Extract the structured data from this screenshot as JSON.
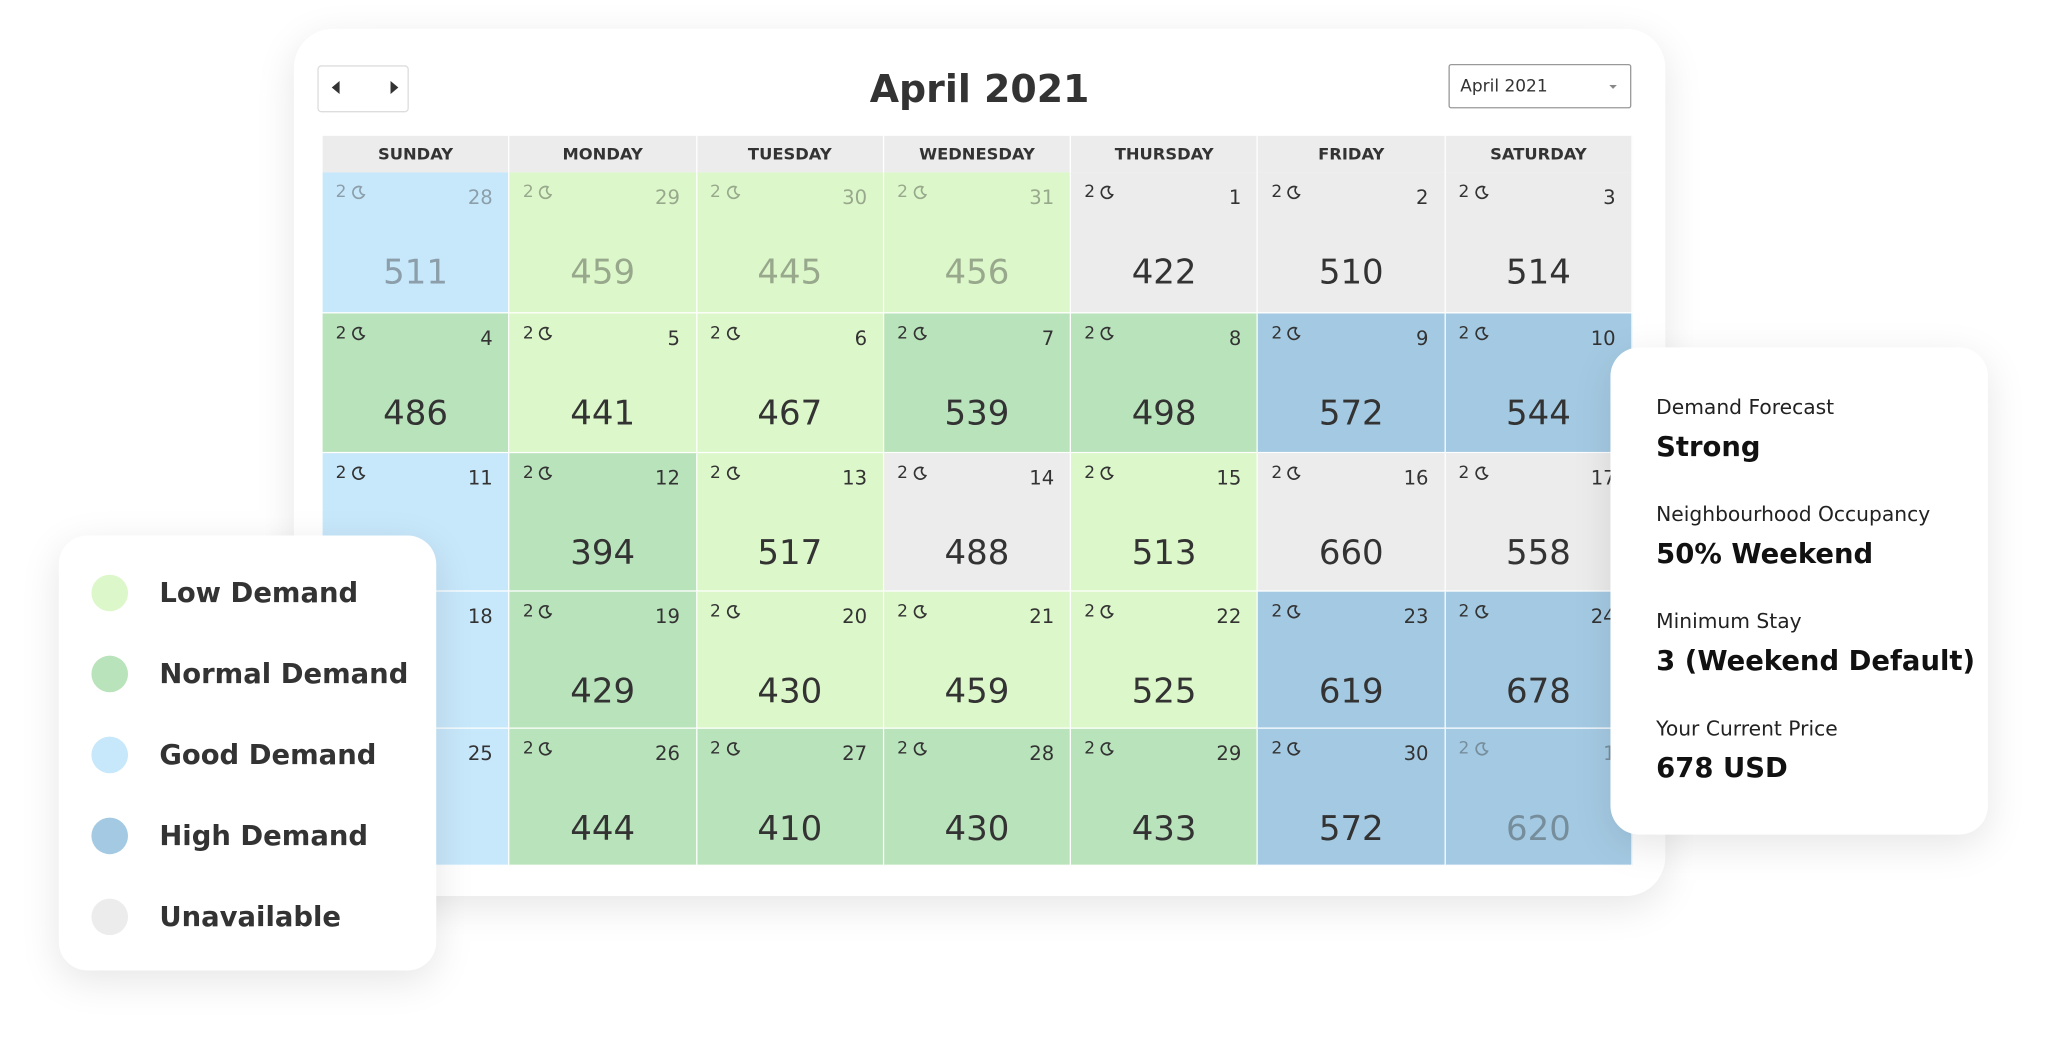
{
  "calendar": {
    "title": "April 2021",
    "dropdown": "April 2021",
    "weekdays": [
      "SUNDAY",
      "MONDAY",
      "TUESDAY",
      "WEDNESDAY",
      "THURSDAY",
      "FRIDAY",
      "SATURDAY"
    ],
    "rows": [
      [
        {
          "day": "28",
          "nights": "2",
          "price": "511",
          "demand": "Good Demand",
          "muted": true
        },
        {
          "day": "29",
          "nights": "2",
          "price": "459",
          "demand": "Low Demand",
          "muted": true
        },
        {
          "day": "30",
          "nights": "2",
          "price": "445",
          "demand": "Low Demand",
          "muted": true
        },
        {
          "day": "31",
          "nights": "2",
          "price": "456",
          "demand": "Low Demand",
          "muted": true
        },
        {
          "day": "1",
          "nights": "2",
          "price": "422",
          "demand": "Unavailable"
        },
        {
          "day": "2",
          "nights": "2",
          "price": "510",
          "demand": "Unavailable"
        },
        {
          "day": "3",
          "nights": "2",
          "price": "514",
          "demand": "Unavailable"
        }
      ],
      [
        {
          "day": "4",
          "nights": "2",
          "price": "486",
          "demand": "Normal Demand"
        },
        {
          "day": "5",
          "nights": "2",
          "price": "441",
          "demand": "Low Demand"
        },
        {
          "day": "6",
          "nights": "2",
          "price": "467",
          "demand": "Low Demand"
        },
        {
          "day": "7",
          "nights": "2",
          "price": "539",
          "demand": "Normal Demand"
        },
        {
          "day": "8",
          "nights": "2",
          "price": "498",
          "demand": "Normal Demand"
        },
        {
          "day": "9",
          "nights": "2",
          "price": "572",
          "demand": "High Demand"
        },
        {
          "day": "10",
          "nights": "2",
          "price": "544",
          "demand": "High Demand"
        }
      ],
      [
        {
          "day": "11",
          "nights": "2",
          "demand": "Good Demand"
        },
        {
          "day": "12",
          "nights": "2",
          "price": "394",
          "demand": "Normal Demand"
        },
        {
          "day": "13",
          "nights": "2",
          "price": "517",
          "demand": "Low Demand"
        },
        {
          "day": "14",
          "nights": "2",
          "price": "488",
          "demand": "Unavailable"
        },
        {
          "day": "15",
          "nights": "2",
          "price": "513",
          "demand": "Low Demand"
        },
        {
          "day": "16",
          "nights": "2",
          "price": "660",
          "demand": "Unavailable"
        },
        {
          "day": "17",
          "nights": "2",
          "price": "558",
          "demand": "Unavailable"
        }
      ],
      [
        {
          "day": "18",
          "demand": "Good Demand"
        },
        {
          "day": "19",
          "nights": "2",
          "price": "429",
          "demand": "Normal Demand"
        },
        {
          "day": "20",
          "nights": "2",
          "price": "430",
          "demand": "Low Demand"
        },
        {
          "day": "21",
          "nights": "2",
          "price": "459",
          "demand": "Low Demand"
        },
        {
          "day": "22",
          "nights": "2",
          "price": "525",
          "demand": "Low Demand"
        },
        {
          "day": "23",
          "nights": "2",
          "price": "619",
          "demand": "High Demand"
        },
        {
          "day": "24",
          "nights": "2",
          "price": "678",
          "demand": "High Demand"
        }
      ],
      [
        {
          "day": "25",
          "demand": "Good Demand"
        },
        {
          "day": "26",
          "nights": "2",
          "price": "444",
          "demand": "Normal Demand"
        },
        {
          "day": "27",
          "nights": "2",
          "price": "410",
          "demand": "Normal Demand"
        },
        {
          "day": "28",
          "nights": "2",
          "price": "430",
          "demand": "Normal Demand"
        },
        {
          "day": "29",
          "nights": "2",
          "price": "433",
          "demand": "Normal Demand"
        },
        {
          "day": "30",
          "nights": "2",
          "price": "572",
          "demand": "High Demand"
        },
        {
          "day": "1",
          "nights": "2",
          "price": "620",
          "demand": "High Demand",
          "muted": true
        }
      ]
    ]
  },
  "legend": [
    {
      "label": "Low Demand",
      "color": "#dcf7c9"
    },
    {
      "label": "Normal Demand",
      "color": "#b9e3bb"
    },
    {
      "label": "Good Demand",
      "color": "#c7e7fa"
    },
    {
      "label": "High Demand",
      "color": "#a4cae3"
    },
    {
      "label": "Unavailable",
      "color": "#ececec"
    }
  ],
  "info": [
    {
      "label": "Demand Forecast",
      "value": "Strong"
    },
    {
      "label": "Neighbourhood Occupancy",
      "value": "50% Weekend"
    },
    {
      "label": "Minimum Stay",
      "value": "3 (Weekend Default)"
    },
    {
      "label": "Your Current Price",
      "value": "678 USD"
    }
  ]
}
